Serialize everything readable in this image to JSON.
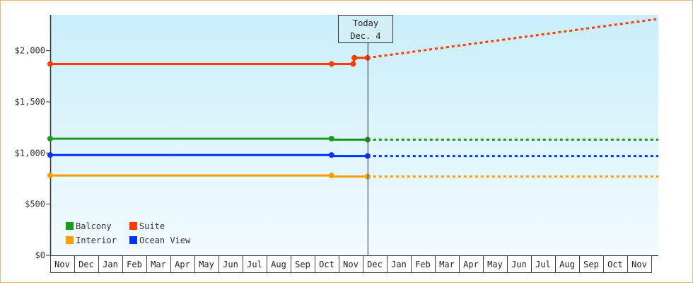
{
  "chart_data": {
    "type": "line",
    "x_ticks": [
      "Nov",
      "Dec",
      "Jan",
      "Feb",
      "Mar",
      "Apr",
      "May",
      "Jun",
      "Jul",
      "Aug",
      "Sep",
      "Oct",
      "Nov",
      "Dec",
      "Jan",
      "Feb",
      "Mar",
      "Apr",
      "May",
      "Jun",
      "Jul",
      "Aug",
      "Sep",
      "Oct",
      "Nov"
    ],
    "y_ticks": [
      "$0",
      "$500",
      "$1,000",
      "$1,500",
      "$2,000"
    ],
    "ylim": [
      0,
      2350
    ],
    "today": {
      "line1": "Today",
      "line2": "Dec. 4",
      "x": 13.2
    },
    "series": [
      {
        "name": "Balcony",
        "color": "#1a9a1a",
        "points": [
          [
            0,
            1140
          ],
          [
            11.7,
            1140
          ],
          [
            11.75,
            1130
          ],
          [
            13.2,
            1130
          ]
        ],
        "markers": [
          [
            0,
            1140
          ],
          [
            11.7,
            1140
          ],
          [
            13.2,
            1130
          ]
        ],
        "projection": [
          [
            13.2,
            1130
          ],
          [
            25.5,
            1130
          ]
        ]
      },
      {
        "name": "Suite",
        "color": "#ff3b00",
        "points": [
          [
            0,
            1870
          ],
          [
            11.7,
            1870
          ],
          [
            12.6,
            1870
          ],
          [
            12.65,
            1930
          ],
          [
            13.2,
            1930
          ]
        ],
        "markers": [
          [
            0,
            1870
          ],
          [
            11.7,
            1870
          ],
          [
            12.6,
            1870
          ],
          [
            12.65,
            1930
          ],
          [
            13.2,
            1930
          ]
        ],
        "projection": [
          [
            13.2,
            1930
          ],
          [
            25.5,
            2310
          ]
        ]
      },
      {
        "name": "Interior",
        "color": "#f5a000",
        "points": [
          [
            0,
            780
          ],
          [
            11.7,
            780
          ],
          [
            11.75,
            770
          ],
          [
            13.2,
            770
          ]
        ],
        "markers": [
          [
            0,
            780
          ],
          [
            11.7,
            780
          ],
          [
            13.2,
            770
          ]
        ],
        "projection": [
          [
            13.2,
            770
          ],
          [
            25.5,
            770
          ]
        ]
      },
      {
        "name": "Ocean View",
        "color": "#0033ff",
        "points": [
          [
            0,
            980
          ],
          [
            11.7,
            980
          ],
          [
            11.75,
            970
          ],
          [
            13.2,
            970
          ]
        ],
        "markers": [
          [
            0,
            980
          ],
          [
            11.7,
            980
          ],
          [
            13.2,
            970
          ]
        ],
        "projection": [
          [
            13.2,
            970
          ],
          [
            25.5,
            970
          ]
        ]
      }
    ],
    "legend_order": [
      0,
      1,
      2,
      3
    ],
    "legend_placement": "bottom-left"
  }
}
